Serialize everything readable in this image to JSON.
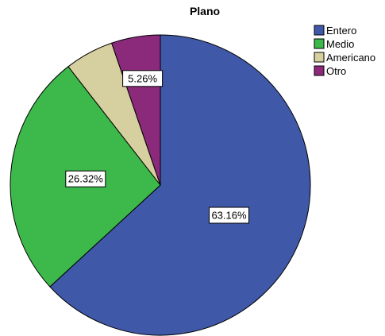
{
  "chart_data": {
    "type": "pie",
    "title": "Plano",
    "legend_position": "top-right",
    "slices": [
      {
        "label": "Entero",
        "value": 63.16,
        "display": "63.16%",
        "color": "#3f58a8"
      },
      {
        "label": "Medio",
        "value": 26.32,
        "display": "26.32%",
        "color": "#3cb94a"
      },
      {
        "label": "Americano",
        "value": 5.26,
        "display": "",
        "color": "#d6cf9f"
      },
      {
        "label": "Otro",
        "value": 5.26,
        "display": "5.26%",
        "color": "#8b2a7b"
      }
    ]
  }
}
